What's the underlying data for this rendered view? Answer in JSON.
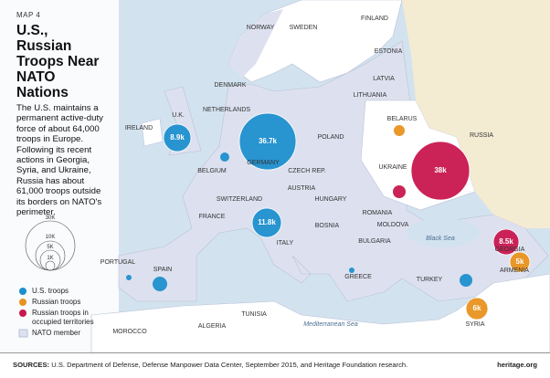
{
  "header": {
    "map_number": "MAP 4",
    "title_lines": [
      "U.S., Russian",
      "Troops Near",
      "NATO Nations"
    ],
    "description": "The U.S. maintains a permanent active-duty force of about 64,000 troops in Europe. Following its recent actions in Georgia, Syria, and Ukraine, Russia has about 61,000 troops outside its borders on NATO's perimeter."
  },
  "size_legend": [
    "30K",
    "10K",
    "5K",
    "1K"
  ],
  "legend": [
    "U.S. troops",
    "Russian troops",
    "Russian troops in occupied territories",
    "NATO member"
  ],
  "countries": [
    "NORWAY",
    "SWEDEN",
    "FINLAND",
    "ESTONIA",
    "LATVIA",
    "LITHUANIA",
    "DENMARK",
    "NETHERLANDS",
    "U.K.",
    "IRELAND",
    "BELARUS",
    "RUSSIA",
    "POLAND",
    "GERMANY",
    "BELGIUM",
    "CZECH REP.",
    "UKRAINE",
    "AUSTRIA",
    "SWITZERLAND",
    "FRANCE",
    "HUNGARY",
    "MOLDOVA",
    "ROMANIA",
    "BOSNIA",
    "ITALY",
    "BULGARIA",
    "GEORGIA",
    "ARMENIA",
    "PORTUGAL",
    "SPAIN",
    "GREECE",
    "TURKEY",
    "TUNISIA",
    "MOROCCO",
    "ALGERIA",
    "SYRIA"
  ],
  "seas": [
    "Black Sea",
    "Mediterranean Sea"
  ],
  "bubble_labels": [
    "8.9k",
    "36.7k",
    "11.8k",
    "38k",
    "8.5k",
    "5k",
    "6k"
  ],
  "footer": {
    "sources_label": "SOURCES:",
    "sources": "U.S. Department of Defense, Defense Manpower Data Center, September 2015, and Heritage Foundation research.",
    "brand": "heritage.org"
  }
}
